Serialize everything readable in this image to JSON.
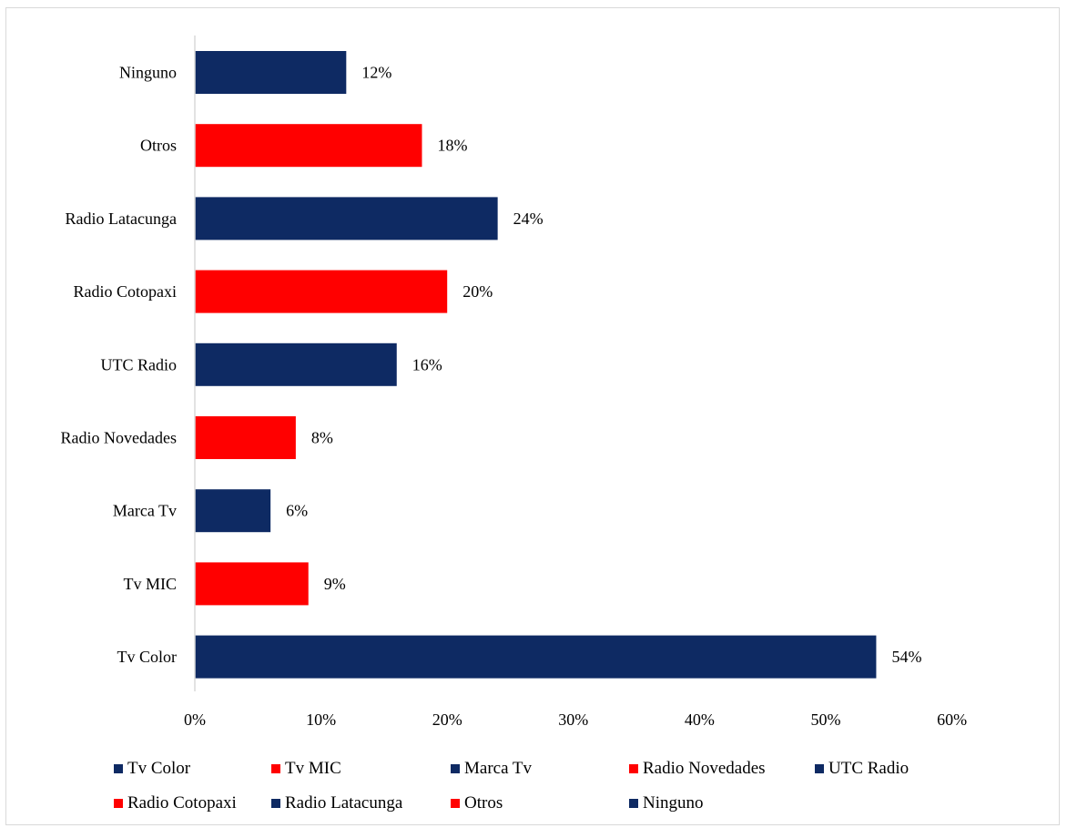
{
  "colors": {
    "navy": "#0e2a63",
    "red": "#ff0000",
    "axis": "#d9d9d9"
  },
  "chart_data": {
    "type": "bar",
    "orientation": "horizontal",
    "title": "",
    "xlabel": "",
    "ylabel": "",
    "xlim": [
      0,
      60
    ],
    "x_ticks": [
      "0%",
      "10%",
      "20%",
      "30%",
      "40%",
      "50%",
      "60%"
    ],
    "grid": false,
    "legend_position": "bottom",
    "categories": [
      "Tv Color",
      "Tv MIC",
      "Marca Tv",
      "Radio Novedades",
      "UTC Radio",
      "Radio Cotopaxi",
      "Radio Latacunga",
      "Otros",
      "Ninguno"
    ],
    "values": [
      54,
      9,
      6,
      8,
      16,
      20,
      24,
      18,
      12
    ],
    "value_labels": [
      "54%",
      "9%",
      "6%",
      "8%",
      "16%",
      "20%",
      "24%",
      "18%",
      "12%"
    ],
    "bar_colors": [
      "#0e2a63",
      "#ff0000",
      "#0e2a63",
      "#ff0000",
      "#0e2a63",
      "#ff0000",
      "#0e2a63",
      "#ff0000",
      "#0e2a63"
    ],
    "legend": [
      "Tv Color",
      "Tv MIC",
      "Marca Tv",
      "Radio Novedades",
      "UTC Radio",
      "Radio Cotopaxi",
      "Radio Latacunga",
      "Otros",
      "Ninguno"
    ]
  }
}
